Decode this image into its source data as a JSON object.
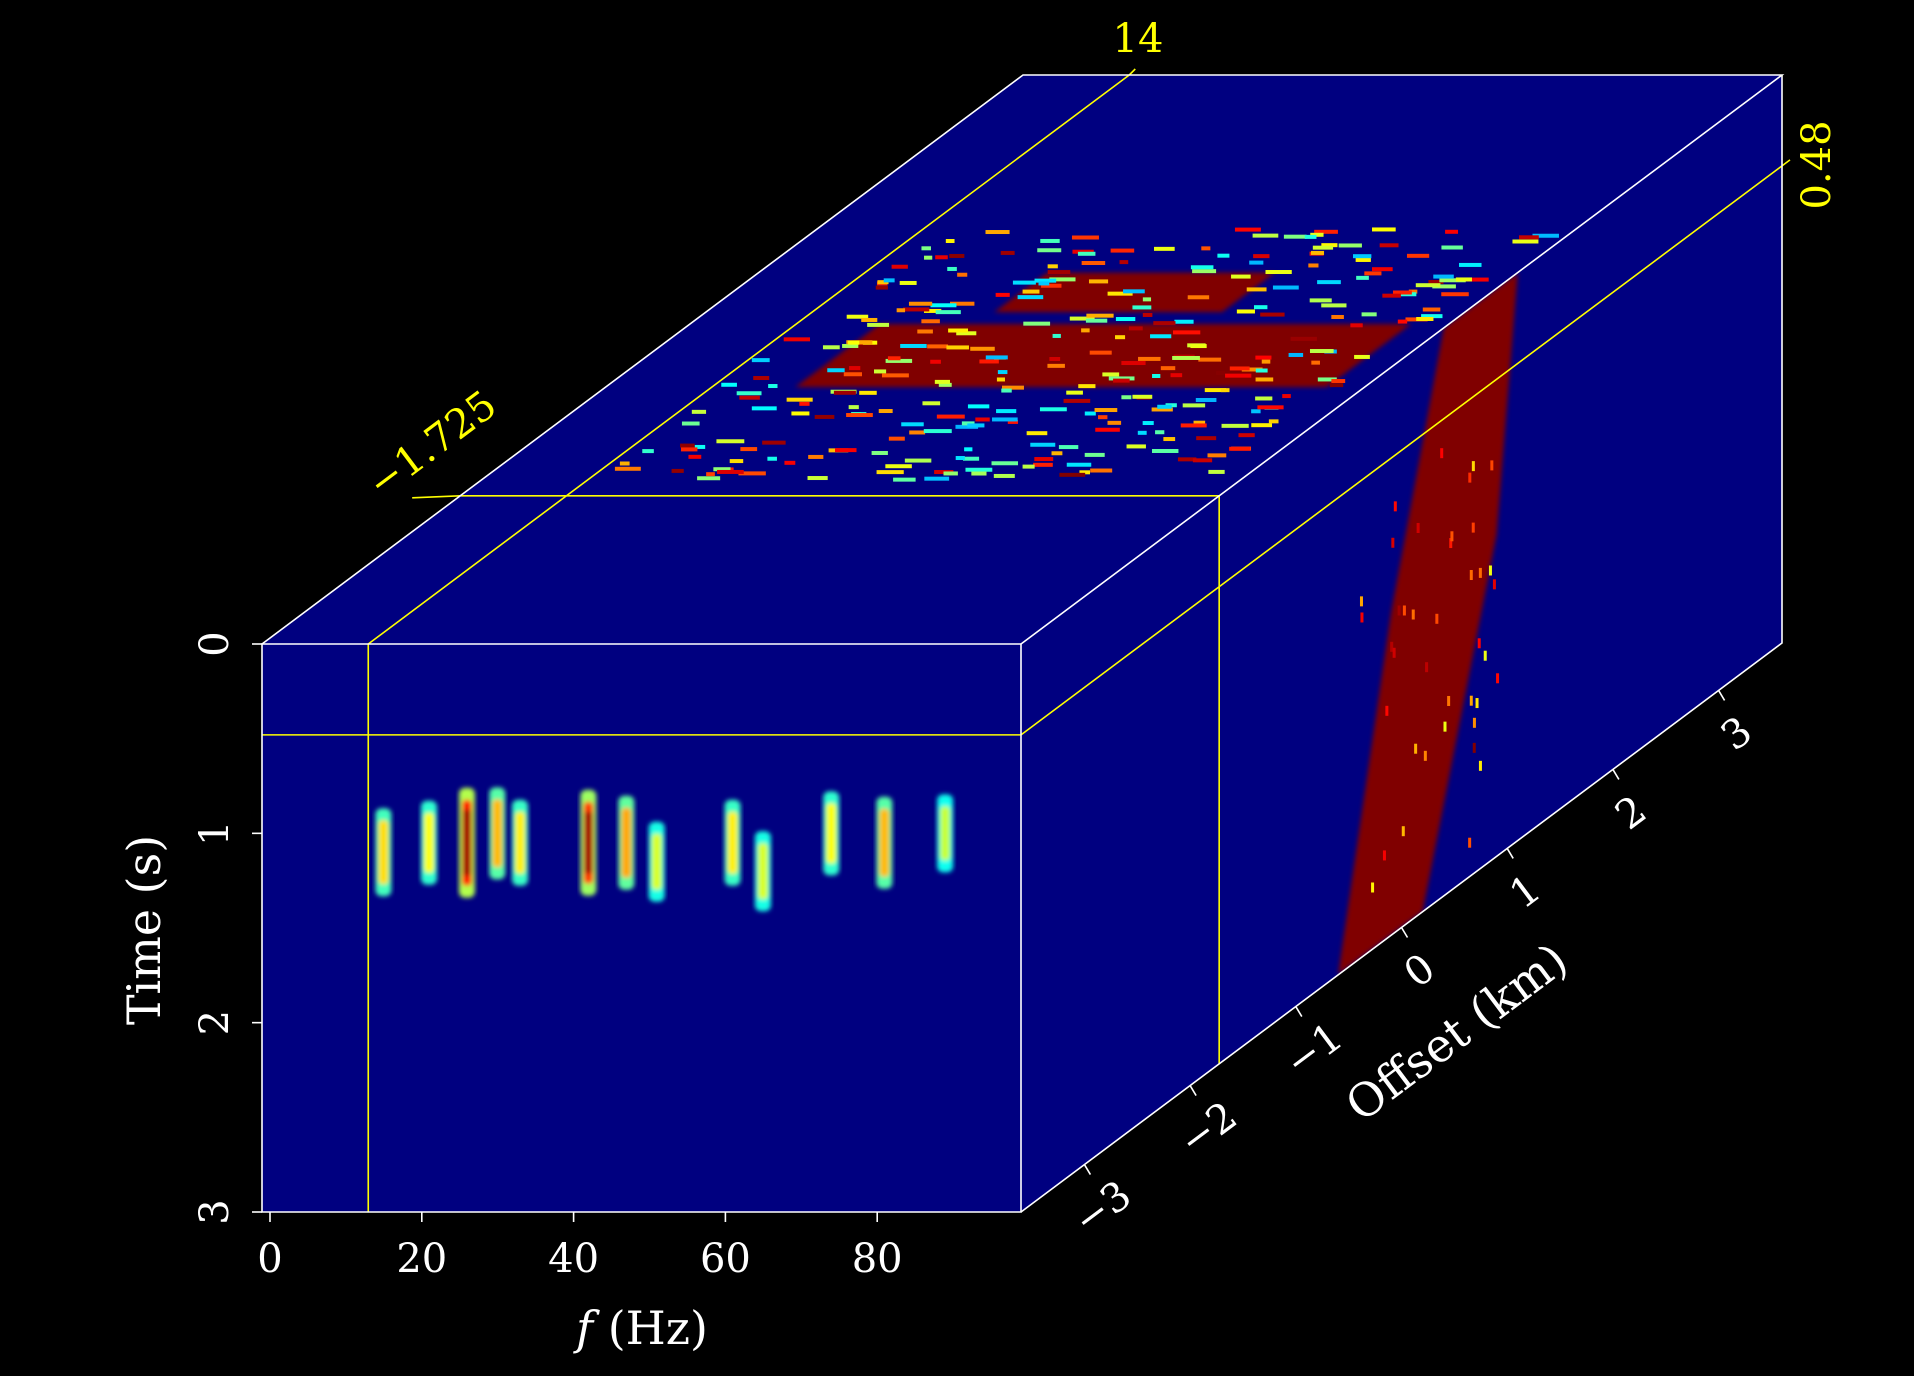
{
  "chart_data": {
    "type": "heatmap",
    "subtype": "3d-cube-slice",
    "colormap": "jet",
    "background": "#000000",
    "line_color": "#ffffff",
    "slice_color": "#ffff00",
    "axes": {
      "time": {
        "label": "Time (s)",
        "range": [
          0,
          3
        ],
        "ticks": [
          "0",
          "1",
          "2",
          "3"
        ]
      },
      "frequency": {
        "label_italic": "f",
        "label_rest": " (Hz)",
        "range": [
          0,
          100
        ],
        "ticks": [
          "0",
          "20",
          "40",
          "60",
          "80"
        ]
      },
      "offset": {
        "label": "Offset (km)",
        "range": [
          -3.6,
          3.6
        ],
        "ticks": [
          "−3",
          "−2",
          "−1",
          "0",
          "1",
          "2",
          "3"
        ]
      }
    },
    "slices": {
      "frequency": {
        "value": 14,
        "label": "14"
      },
      "offset": {
        "value": -1.725,
        "label": "−1.725"
      },
      "time": {
        "value": 0.48,
        "label": "0.48"
      }
    },
    "front_panel_events": [
      {
        "f": 16,
        "t": 1.1,
        "amp": 0.45
      },
      {
        "f": 22,
        "t": 1.05,
        "amp": 0.35
      },
      {
        "f": 27,
        "t": 1.05,
        "amp": 1.0
      },
      {
        "f": 31,
        "t": 1.0,
        "amp": 0.55
      },
      {
        "f": 34,
        "t": 1.05,
        "amp": 0.4
      },
      {
        "f": 43,
        "t": 1.05,
        "amp": 0.9
      },
      {
        "f": 48,
        "t": 1.05,
        "amp": 0.6
      },
      {
        "f": 52,
        "t": 1.15,
        "amp": 0.25
      },
      {
        "f": 62,
        "t": 1.05,
        "amp": 0.4
      },
      {
        "f": 66,
        "t": 1.2,
        "amp": 0.25
      },
      {
        "f": 75,
        "t": 1.0,
        "amp": 0.35
      },
      {
        "f": 82,
        "t": 1.05,
        "amp": 0.55
      },
      {
        "f": 90,
        "t": 1.0,
        "amp": 0.2
      }
    ]
  }
}
